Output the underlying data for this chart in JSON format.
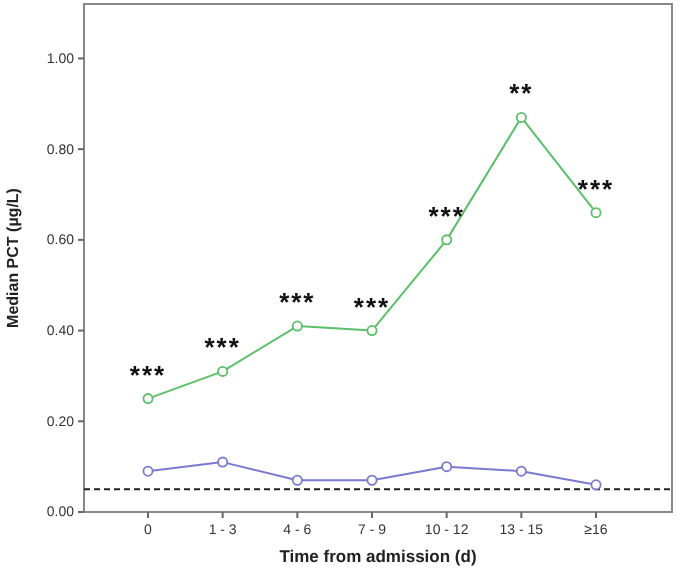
{
  "chart_data": {
    "type": "line",
    "xlabel": "Time from admission (d)",
    "ylabel": "Median PCT (µg/L)",
    "categories": [
      "0",
      "1 - 3",
      "4 - 6",
      "7 - 9",
      "10 - 12",
      "13 - 15",
      "≥16"
    ],
    "series": [
      {
        "color": "#5cbf6a",
        "values": [
          0.25,
          0.31,
          0.41,
          0.4,
          0.6,
          0.87,
          0.66
        ]
      },
      {
        "color": "#7a7ad0",
        "values": [
          0.09,
          0.11,
          0.07,
          0.07,
          0.1,
          0.09,
          0.06
        ]
      }
    ],
    "marker": "circle",
    "line_style": "solid",
    "ylim": [
      0,
      1.12
    ],
    "yticks": [
      {
        "value": 0,
        "label": "0.00"
      },
      {
        "value": 0.2,
        "label": "0.20"
      },
      {
        "value": 0.4,
        "label": "0.40"
      },
      {
        "value": 0.6,
        "label": "0.60"
      },
      {
        "value": 0.8,
        "label": "0.80"
      },
      {
        "value": 1,
        "label": "1.00"
      }
    ],
    "grid": false,
    "ref_lines": [
      {
        "axis": "y",
        "value": 0.05,
        "color": "#222222",
        "line_style": "dashed"
      }
    ],
    "annotations": [
      {
        "text": "***",
        "x": "0",
        "y": 0.25
      },
      {
        "text": "***",
        "x": "1 - 3",
        "y": 0.31
      },
      {
        "text": "***",
        "x": "4 - 6",
        "y": 0.41
      },
      {
        "text": "***",
        "x": "7 - 9",
        "y": 0.4
      },
      {
        "text": "***",
        "x": "10 - 12",
        "y": 0.6
      },
      {
        "text": "**",
        "x": "13 - 15",
        "y": 0.87
      },
      {
        "text": "***",
        "x": "≥16",
        "y": 0.66
      }
    ]
  }
}
